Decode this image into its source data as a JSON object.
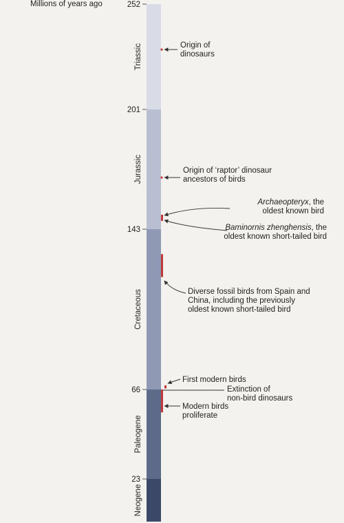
{
  "axis_title": "Millions of years ago",
  "colors": {
    "triassic": "#d9dce6",
    "jurassic": "#b9bfd1",
    "cretaceous": "#8f99b3",
    "paleogene": "#5d6a88",
    "neogene": "#3b4868",
    "event_red": "#c0393b",
    "arrow": "#333333"
  },
  "ticks": [
    {
      "mya": 252,
      "label": "252"
    },
    {
      "mya": 201,
      "label": "201"
    },
    {
      "mya": 143,
      "label": "143"
    },
    {
      "mya": 66,
      "label": "66"
    },
    {
      "mya": 23,
      "label": "23"
    }
  ],
  "periods": [
    {
      "name": "Triassic",
      "from": 252,
      "to": 201,
      "color_key": "triassic"
    },
    {
      "name": "Jurassic",
      "from": 201,
      "to": 143,
      "color_key": "jurassic"
    },
    {
      "name": "Cretaceous",
      "from": 143,
      "to": 66,
      "color_key": "cretaceous"
    },
    {
      "name": "Paleogene",
      "from": 66,
      "to": 23,
      "color_key": "paleogene"
    },
    {
      "name": "Neogene",
      "from": 23,
      "to": 0,
      "color_key": "neogene"
    }
  ],
  "events": [
    {
      "id": "origin-dinosaurs",
      "from": 230,
      "to": 230,
      "line1": "Origin of",
      "line2": "dinosaurs",
      "line1_italic": ""
    },
    {
      "id": "raptor-ancestors",
      "from": 168,
      "to": 168,
      "line1": "Origin of ‘raptor’ dinosaur",
      "line2": "ancestors of birds",
      "line1_italic": ""
    },
    {
      "id": "archaeopteryx",
      "from": 150,
      "to": 147,
      "line1_italic": "Archaeopteryx",
      "line1": ", the",
      "line2": "oldest known bird"
    },
    {
      "id": "baminornis",
      "from": 150,
      "to": 147,
      "line1_italic": "Baminornis zhenghensis",
      "line1": ", the",
      "line2": "oldest known short-tailed bird"
    },
    {
      "id": "diverse-fossils",
      "from": 131,
      "to": 120,
      "line1": "Diverse fossil birds from Spain and",
      "line2": "China, including the previously",
      "line3": "oldest known short-tailed bird",
      "line1_italic": ""
    },
    {
      "id": "first-modern",
      "from": 68,
      "to": 66.5,
      "line1": "First modern birds",
      "line1_italic": ""
    },
    {
      "id": "extinction",
      "from": 66,
      "to": 66,
      "line1": "Extinction of",
      "line2": "non-bird dinosaurs",
      "line1_italic": ""
    },
    {
      "id": "proliferate",
      "from": 66,
      "to": 55,
      "line1": "Modern birds",
      "line2": "proliferate",
      "line1_italic": ""
    }
  ]
}
